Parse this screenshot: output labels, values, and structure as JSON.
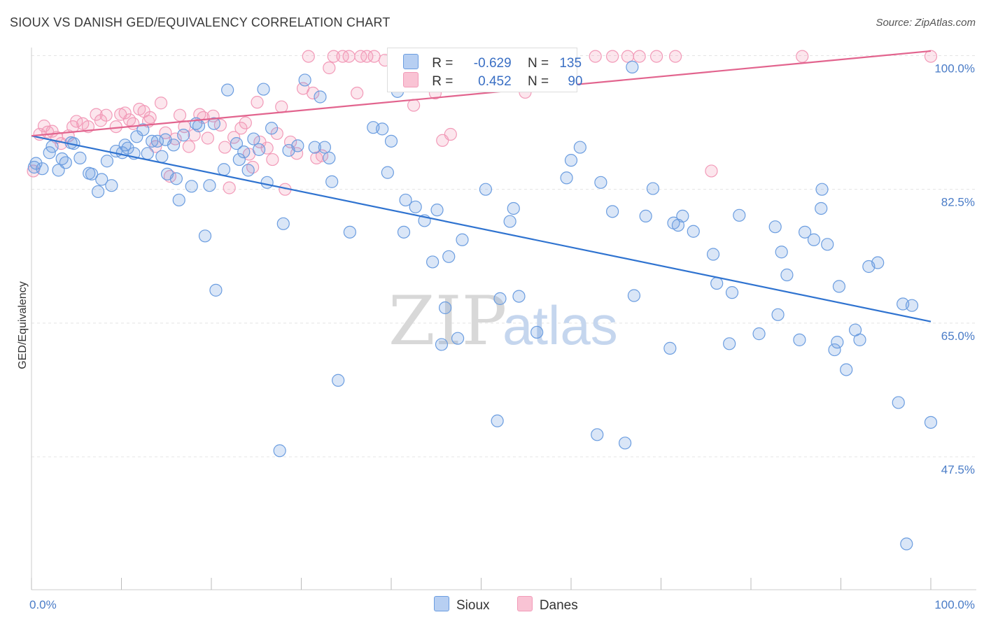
{
  "title": "SIOUX VS DANISH GED/EQUIVALENCY CORRELATION CHART",
  "source": "Source: ZipAtlas.com",
  "watermark": {
    "zip": "ZIP",
    "atlas": "atlas"
  },
  "legend": {
    "rows": [
      {
        "r_label": "R =",
        "r_value": "-0.629",
        "n_label": "N =",
        "n_value": "135"
      },
      {
        "r_label": "R =",
        "r_value": "0.452",
        "n_label": "N =",
        "n_value": "90"
      }
    ]
  },
  "chart_data": {
    "type": "scatter",
    "ylabel": "GED/Equivalency",
    "xlim": [
      0,
      100
    ],
    "ylim": [
      32,
      102
    ],
    "x_tick_labels": [
      "0.0%",
      "100.0%"
    ],
    "y_ticks": [
      {
        "value": 100,
        "label": "100.0%"
      },
      {
        "value": 82.5,
        "label": "82.5%"
      },
      {
        "value": 65,
        "label": "65.0%"
      },
      {
        "value": 47.5,
        "label": "47.5%"
      }
    ],
    "grid": true,
    "legend_position": "bottom-center",
    "colors": {
      "sioux": "#6b9de0",
      "danes": "#f29ab8",
      "sioux_line": "#2f73d0",
      "danes_line": "#e2648e"
    },
    "series": [
      {
        "name": "Sioux",
        "trend": {
          "x1": 0,
          "y1": 89.5,
          "x2": 100,
          "y2": 65.2
        },
        "points": [
          [
            0.3,
            85.4
          ],
          [
            0.5,
            85.9
          ],
          [
            1.2,
            85.2
          ],
          [
            2,
            87.3
          ],
          [
            2.3,
            88.1
          ],
          [
            3,
            85
          ],
          [
            3.4,
            86.5
          ],
          [
            3.8,
            86
          ],
          [
            4.4,
            88.6
          ],
          [
            4.7,
            88.5
          ],
          [
            5.4,
            86.6
          ],
          [
            6.4,
            84.6
          ],
          [
            6.7,
            84.5
          ],
          [
            7.4,
            82.2
          ],
          [
            7.8,
            83.8
          ],
          [
            8.4,
            86.2
          ],
          [
            8.9,
            83
          ],
          [
            9.4,
            87.5
          ],
          [
            10.1,
            87.3
          ],
          [
            10.4,
            88.3
          ],
          [
            10.7,
            87.9
          ],
          [
            11.4,
            87.2
          ],
          [
            11.7,
            89.4
          ],
          [
            12.4,
            90.3
          ],
          [
            12.9,
            87.2
          ],
          [
            13.4,
            88.8
          ],
          [
            14,
            88.8
          ],
          [
            14.5,
            86.8
          ],
          [
            14.9,
            89
          ],
          [
            15.1,
            84.5
          ],
          [
            15.8,
            88.3
          ],
          [
            16.1,
            83.9
          ],
          [
            16.4,
            81.1
          ],
          [
            16.9,
            89.6
          ],
          [
            17.8,
            82.9
          ],
          [
            18.3,
            91.1
          ],
          [
            18.6,
            90.8
          ],
          [
            19.3,
            76.4
          ],
          [
            19.8,
            83
          ],
          [
            20.3,
            91.1
          ],
          [
            20.5,
            69.3
          ],
          [
            21.4,
            85.1
          ],
          [
            21.8,
            95.5
          ],
          [
            22.8,
            88.5
          ],
          [
            23.1,
            86.4
          ],
          [
            23.6,
            87.4
          ],
          [
            24.1,
            85
          ],
          [
            24.7,
            89.1
          ],
          [
            25.3,
            87.7
          ],
          [
            25.8,
            95.6
          ],
          [
            26.2,
            83.4
          ],
          [
            26.7,
            90.5
          ],
          [
            27.6,
            48.3
          ],
          [
            28,
            78
          ],
          [
            28.6,
            87.6
          ],
          [
            29.6,
            88.2
          ],
          [
            30.4,
            96.8
          ],
          [
            31.5,
            88
          ],
          [
            32.1,
            94.6
          ],
          [
            32.6,
            88
          ],
          [
            33.1,
            86.6
          ],
          [
            33.4,
            83.5
          ],
          [
            34.1,
            57.5
          ],
          [
            35.4,
            76.9
          ],
          [
            38,
            90.6
          ],
          [
            39,
            90.4
          ],
          [
            39.6,
            84.7
          ],
          [
            40,
            88.8
          ],
          [
            40.7,
            95.3
          ],
          [
            41.4,
            76.9
          ],
          [
            41.6,
            81.1
          ],
          [
            42.7,
            80.2
          ],
          [
            43.7,
            78.4
          ],
          [
            44.6,
            73
          ],
          [
            45.1,
            79.8
          ],
          [
            45.6,
            62.2
          ],
          [
            46,
            67
          ],
          [
            46.4,
            73.7
          ],
          [
            47.4,
            63
          ],
          [
            47.9,
            75.9
          ],
          [
            50.5,
            82.5
          ],
          [
            51.8,
            52.2
          ],
          [
            52.1,
            68.2
          ],
          [
            53.2,
            78.3
          ],
          [
            53.6,
            80
          ],
          [
            54.2,
            68.5
          ],
          [
            56.2,
            63.8
          ],
          [
            59.5,
            84
          ],
          [
            60,
            86.3
          ],
          [
            61,
            88
          ],
          [
            62.9,
            50.4
          ],
          [
            63.3,
            83.4
          ],
          [
            64.6,
            79.6
          ],
          [
            66,
            49.3
          ],
          [
            66.8,
            98.5
          ],
          [
            67,
            68.6
          ],
          [
            68.3,
            79
          ],
          [
            69.1,
            82.6
          ],
          [
            71,
            61.7
          ],
          [
            71.4,
            78.1
          ],
          [
            71.9,
            77.8
          ],
          [
            72.4,
            79
          ],
          [
            73.6,
            77
          ],
          [
            75.8,
            74
          ],
          [
            76.2,
            70.2
          ],
          [
            77.6,
            62.3
          ],
          [
            77.9,
            69
          ],
          [
            78.7,
            79.1
          ],
          [
            80.9,
            63.6
          ],
          [
            82.7,
            77.6
          ],
          [
            83,
            66.1
          ],
          [
            83.4,
            74.3
          ],
          [
            84,
            71.3
          ],
          [
            85.4,
            62.8
          ],
          [
            86,
            76.9
          ],
          [
            87,
            75.9
          ],
          [
            87.8,
            80
          ],
          [
            87.9,
            82.5
          ],
          [
            88.5,
            75.3
          ],
          [
            89.3,
            61.5
          ],
          [
            89.6,
            62.5
          ],
          [
            89.8,
            69.8
          ],
          [
            90.6,
            58.9
          ],
          [
            91.6,
            64.1
          ],
          [
            92.1,
            62.8
          ],
          [
            93.1,
            72.4
          ],
          [
            94.1,
            72.9
          ],
          [
            96.4,
            54.6
          ],
          [
            96.9,
            67.5
          ],
          [
            97.3,
            36.1
          ],
          [
            97.9,
            67.3
          ],
          [
            100,
            52
          ]
        ]
      },
      {
        "name": "Danes",
        "trend": {
          "x1": 0,
          "y1": 89.5,
          "x2": 100,
          "y2": 100.6
        },
        "points": [
          [
            0.2,
            84.9
          ],
          [
            0.9,
            89.7
          ],
          [
            1.4,
            90.8
          ],
          [
            1.8,
            90
          ],
          [
            2.3,
            90.1
          ],
          [
            2.8,
            89.3
          ],
          [
            3.3,
            88.5
          ],
          [
            4.1,
            89.5
          ],
          [
            4.6,
            90.7
          ],
          [
            5,
            91.4
          ],
          [
            5.7,
            91.1
          ],
          [
            6.3,
            90.7
          ],
          [
            7.2,
            92.3
          ],
          [
            7.7,
            91.5
          ],
          [
            8.3,
            92.2
          ],
          [
            9.4,
            90.7
          ],
          [
            9.9,
            92.3
          ],
          [
            10.4,
            92.5
          ],
          [
            10.9,
            91.6
          ],
          [
            11.3,
            91.1
          ],
          [
            12,
            93
          ],
          [
            12.5,
            92.7
          ],
          [
            13,
            91.4
          ],
          [
            13.2,
            91.9
          ],
          [
            13.8,
            88.1
          ],
          [
            14.4,
            93.8
          ],
          [
            14.9,
            89.9
          ],
          [
            15.4,
            84.2
          ],
          [
            16,
            89.1
          ],
          [
            16.5,
            92.2
          ],
          [
            17,
            90.7
          ],
          [
            17.5,
            88.1
          ],
          [
            18.1,
            89.6
          ],
          [
            18.7,
            92.3
          ],
          [
            19.1,
            91.9
          ],
          [
            19.6,
            89.2
          ],
          [
            20.2,
            92.1
          ],
          [
            21,
            90.9
          ],
          [
            21.5,
            88
          ],
          [
            22,
            82.7
          ],
          [
            22.5,
            89.3
          ],
          [
            23.3,
            90.5
          ],
          [
            23.8,
            91.2
          ],
          [
            24.2,
            87.1
          ],
          [
            24.6,
            85.4
          ],
          [
            25.1,
            93.9
          ],
          [
            25.4,
            88.7
          ],
          [
            26.2,
            87.9
          ],
          [
            26.8,
            86.4
          ],
          [
            27.3,
            89.8
          ],
          [
            27.8,
            93.3
          ],
          [
            28.2,
            82.5
          ],
          [
            28.8,
            88.7
          ],
          [
            29.5,
            87.2
          ],
          [
            30.2,
            95.7
          ],
          [
            30.8,
            99.9
          ],
          [
            31.3,
            95.1
          ],
          [
            31.7,
            86.6
          ],
          [
            32.3,
            86.9
          ],
          [
            33.1,
            98.4
          ],
          [
            33.6,
            99.9
          ],
          [
            34.6,
            99.9
          ],
          [
            35.3,
            99.9
          ],
          [
            36.2,
            95.1
          ],
          [
            36.6,
            99.9
          ],
          [
            37.3,
            99.9
          ],
          [
            38.1,
            99.9
          ],
          [
            39.3,
            99.4
          ],
          [
            40.6,
            98.4
          ],
          [
            41.5,
            99.9
          ],
          [
            42.5,
            93.5
          ],
          [
            42.8,
            97.6
          ],
          [
            44.9,
            95.1
          ],
          [
            45.7,
            88.9
          ],
          [
            46.6,
            89.7
          ],
          [
            47.2,
            99.9
          ],
          [
            48.3,
            99.9
          ],
          [
            50.6,
            99.9
          ],
          [
            53.1,
            99.9
          ],
          [
            54.9,
            95.2
          ],
          [
            57,
            99.9
          ],
          [
            58.1,
            99.9
          ],
          [
            59.3,
            99.9
          ],
          [
            62.7,
            99.9
          ],
          [
            64.6,
            99.9
          ],
          [
            66.3,
            99.9
          ],
          [
            67.6,
            99.9
          ],
          [
            69.5,
            99.9
          ],
          [
            71.6,
            99.9
          ],
          [
            75.6,
            84.9
          ],
          [
            85.7,
            99.9
          ],
          [
            100,
            99.9
          ]
        ]
      }
    ]
  }
}
